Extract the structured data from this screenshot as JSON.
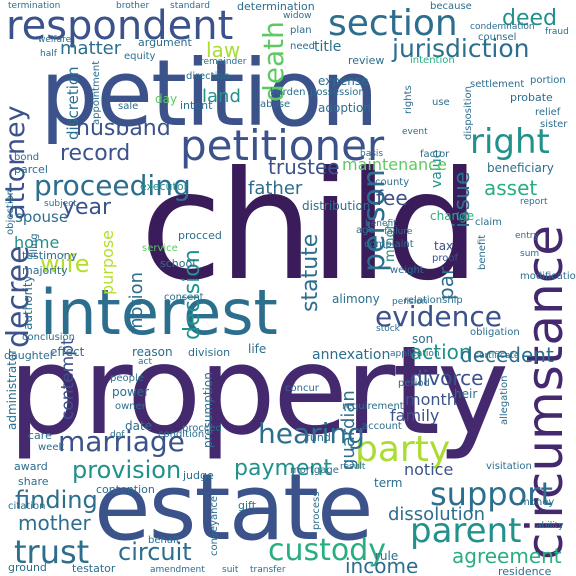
{
  "words": {
    "child": "child",
    "property": "property",
    "petition": "petition",
    "estate": "estate",
    "interest": "interest",
    "petitioner": "petitioner",
    "respondent": "respondent",
    "section": "section",
    "party": "party",
    "circumstance": "circumstance",
    "jurisdiction": "jurisdiction",
    "right": "right",
    "proceeding": "proceeding",
    "evidence": "evidence",
    "custody": "custody",
    "support": "support",
    "marriage": "marriage",
    "trust": "trust",
    "parent": "parent",
    "hearing": "hearing",
    "decree": "decree",
    "attorney": "attorney",
    "matter": "matter",
    "law": "law",
    "death": "death",
    "deed": "deed",
    "husband": "husband",
    "record": "record",
    "land": "land",
    "trustee": "trustee",
    "maintenance": "maintenance",
    "father": "father",
    "year": "year",
    "fee": "fee",
    "issue": "issue",
    "asset": "asset",
    "wife": "wife",
    "home": "home",
    "motion": "motion",
    "decision": "decision",
    "purpose": "purpose",
    "person": "person",
    "statute": "statute",
    "par": "par",
    "decedent": "decedent",
    "divorce": "divorce",
    "action": "action",
    "provision": "provision",
    "payment": "payment",
    "finding": "finding",
    "mother": "mother",
    "circuit": "circuit",
    "income": "income",
    "agreement": "agreement",
    "dissolution": "dissolution",
    "notice": "notice",
    "month": "month",
    "family": "family",
    "annexation": "annexation",
    "spouse": "spouse",
    "guardian": "guardian",
    "argument": "argument",
    "determination": "determination",
    "equity": "equity",
    "discretion": "discretion",
    "title": "title",
    "expense": "expense",
    "possession": "possession",
    "adoption": "adoption",
    "benefit": "benefit",
    "change": "change",
    "minor": "minor",
    "value": "value",
    "tax": "tax",
    "claim": "claim",
    "entry": "entry",
    "beneficiary": "beneficiary",
    "probate": "probate",
    "settlement": "settlement",
    "relief": "relief",
    "portion": "portion",
    "executor": "executor",
    "testimony": "testimony",
    "majority": "majority",
    "authority": "authority",
    "effect": "effect",
    "reason": "reason",
    "division": "division",
    "life": "life",
    "power": "power",
    "owner": "owner",
    "date": "date",
    "contempt": "contempt",
    "presumption": "presumption",
    "condition": "condition",
    "judge": "judge",
    "contention": "contention",
    "mortgage": "mortgage",
    "gift": "gift",
    "term": "term",
    "visitation": "visitation",
    "residence": "residence",
    "testator": "testator",
    "ground": "ground",
    "citation": "citation",
    "share": "share",
    "award": "award",
    "care": "care",
    "week": "week",
    "administrator": "administrator",
    "daughter": "daughter",
    "conclusion": "conclusion",
    "relationship": "relationship",
    "heir": "heir",
    "period": "period",
    "requirement": "requirement",
    "account": "account",
    "fund": "fund",
    "rule": "rule",
    "event": "event",
    "distribution": "distribution",
    "alimony": "alimony",
    "school": "school",
    "consent": "consent",
    "service": "service",
    "procced": "procced",
    "abuse": "abuse",
    "intent": "intent",
    "burden": "burden",
    "direction": "direction",
    "appointment": "appointment",
    "sale": "sale",
    "day": "day",
    "remainder": "remainder",
    "half": "half",
    "welfare": "welfare",
    "plan": "plan",
    "need": "need",
    "review": "review",
    "widow": "widow",
    "because": "because",
    "counsel": "counsel",
    "fraud": "fraud",
    "intention": "intention",
    "condemnation": "condemnation",
    "use": "use",
    "sister": "sister",
    "disposition": "disposition",
    "factor": "factor",
    "basis": "basis",
    "county": "county",
    "age": "age",
    "obligation": "obligation",
    "certificate": "certificate",
    "application": "application",
    "son": "son",
    "modification": "modification",
    "sum": "sum",
    "report": "report",
    "stock": "stock",
    "weight": "weight",
    "complaint": "complaint",
    "failure": "failure",
    "proof": "proof",
    "bond": "bond",
    "parcel": "parcel",
    "objection": "objection",
    "subject": "subject",
    "filing": "filing",
    "termination": "termination",
    "brother": "brother",
    "standard": "standard",
    "result": "result",
    "transfer": "transfer",
    "process": "process",
    "conveyance": "conveyance",
    "behalf": "behalf",
    "amendment": "amendment",
    "ability": "ability",
    "money": "money",
    "allegation": "allegation",
    "concur": "concur",
    "pension": "pension",
    "dof": "dof",
    "act": "act",
    "people": "people",
    "rights": "rights",
    "suit": "suit"
  }
}
